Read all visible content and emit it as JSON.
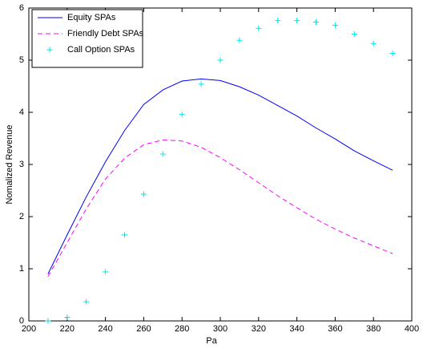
{
  "chart_data": {
    "type": "line",
    "x_label": "Pa",
    "y_label": "Nomalized Revenue",
    "x": [
      210,
      220,
      230,
      240,
      250,
      260,
      270,
      280,
      290,
      300,
      310,
      320,
      330,
      340,
      350,
      360,
      370,
      380,
      390
    ],
    "series": [
      {
        "name": "Equity SPAs",
        "color": "#0000ff",
        "line": "solid",
        "marker": "none",
        "values": [
          0.9,
          1.65,
          2.38,
          3.05,
          3.65,
          4.15,
          4.43,
          4.6,
          4.64,
          4.61,
          4.49,
          4.33,
          4.13,
          3.93,
          3.7,
          3.49,
          3.26,
          3.07,
          2.89
        ]
      },
      {
        "name": "Friendly Debt SPAs",
        "color": "#ff00ff",
        "line": "dashed",
        "marker": "none",
        "values": [
          0.85,
          1.5,
          2.15,
          2.72,
          3.12,
          3.38,
          3.47,
          3.45,
          3.33,
          3.13,
          2.9,
          2.65,
          2.4,
          2.17,
          1.95,
          1.76,
          1.59,
          1.44,
          1.29
        ]
      },
      {
        "name": "Call Option SPAs",
        "color": "#00e5e5",
        "line": "none",
        "marker": "plus",
        "values": [
          0,
          0.07,
          0.37,
          0.94,
          1.65,
          2.43,
          3.2,
          3.96,
          4.54,
          5.0,
          5.38,
          5.61,
          5.76,
          5.76,
          5.73,
          5.67,
          5.5,
          5.32,
          5.13
        ]
      }
    ],
    "xlim": [
      200,
      400
    ],
    "xticks": [
      200,
      220,
      240,
      260,
      280,
      300,
      320,
      340,
      360,
      380,
      400
    ],
    "ylim": [
      0,
      6
    ],
    "yticks": [
      0,
      1,
      2,
      3,
      4,
      5,
      6
    ],
    "grid": false,
    "legend": "upper-left"
  }
}
